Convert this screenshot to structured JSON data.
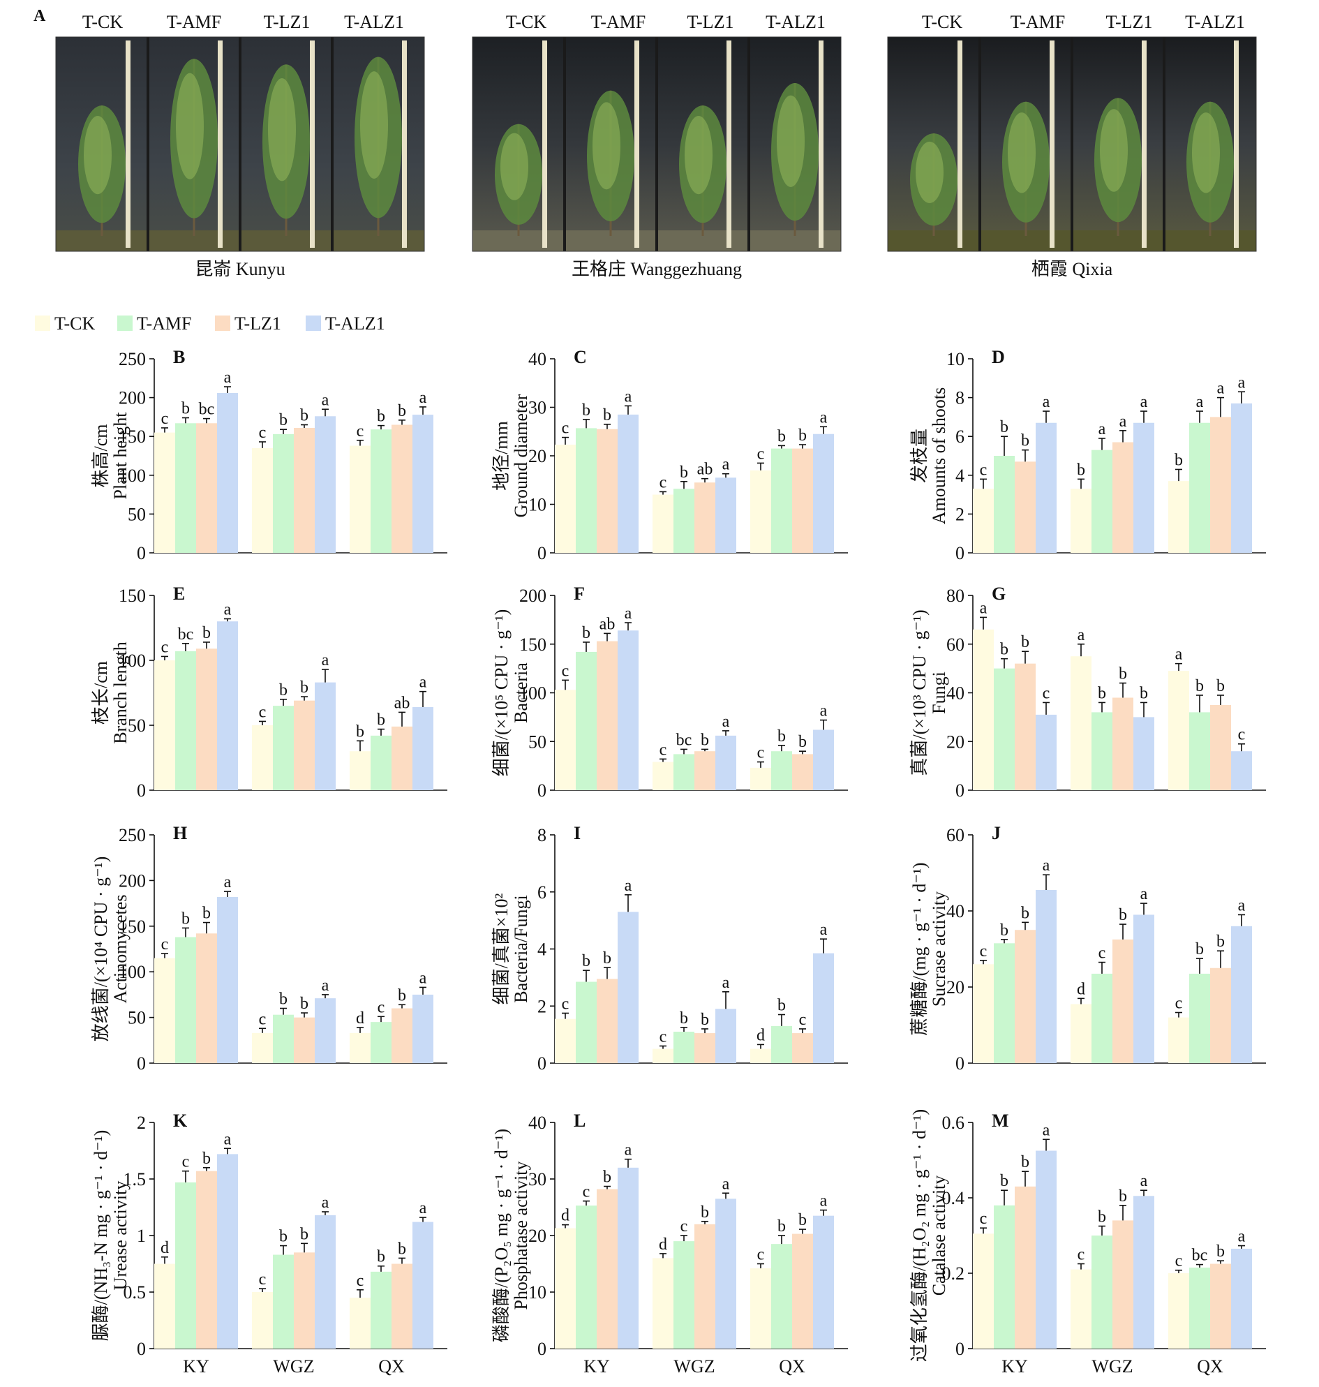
{
  "figure_label_A": "A",
  "photo_panels": [
    {
      "location_label": "昆嵛 Kunyu",
      "treatments": [
        "T-CK",
        "T-AMF",
        "T-LZ1",
        "T-ALZ1"
      ]
    },
    {
      "location_label": "王格庄 Wanggezhuang",
      "treatments": [
        "T-CK",
        "T-AMF",
        "T-LZ1",
        "T-ALZ1"
      ]
    },
    {
      "location_label": "栖霞 Qixia",
      "treatments": [
        "T-CK",
        "T-AMF",
        "T-LZ1",
        "T-ALZ1"
      ]
    }
  ],
  "legend": [
    {
      "name": "T-CK",
      "color": "#FFFBE0"
    },
    {
      "name": "T-AMF",
      "color": "#C9F7CF"
    },
    {
      "name": "T-LZ1",
      "color": "#FCDCC2"
    },
    {
      "name": "T-ALZ1",
      "color": "#C8DAF6"
    }
  ],
  "x_categories": [
    "KY",
    "WGZ",
    "QX"
  ],
  "chart_data": [
    {
      "panel": "B",
      "type": "bar",
      "ylabel_cn": "株高/cm",
      "ylabel_en": "Plant height",
      "ylim": [
        0,
        250
      ],
      "ticks": [
        0,
        50,
        100,
        150,
        200,
        250
      ],
      "categories": [
        "KY",
        "WGZ",
        "QX"
      ],
      "series": [
        {
          "name": "T-CK",
          "values": [
            155,
            135,
            138
          ],
          "errors": [
            6,
            8,
            7
          ],
          "letters": [
            "c",
            "c",
            "c"
          ]
        },
        {
          "name": "T-AMF",
          "values": [
            167,
            153,
            159
          ],
          "errors": [
            7,
            6,
            5
          ],
          "letters": [
            "b",
            "b",
            "b"
          ]
        },
        {
          "name": "T-LZ1",
          "values": [
            167,
            161,
            165
          ],
          "errors": [
            6,
            4,
            6
          ],
          "letters": [
            "bc",
            "b",
            "b"
          ]
        },
        {
          "name": "T-ALZ1",
          "values": [
            206,
            176,
            178
          ],
          "errors": [
            8,
            9,
            10
          ],
          "letters": [
            "a",
            "a",
            "a"
          ]
        }
      ]
    },
    {
      "panel": "C",
      "type": "bar",
      "ylabel_cn": "地径/mm",
      "ylabel_en": "Ground diameter",
      "ylim": [
        0,
        40
      ],
      "ticks": [
        0,
        10,
        20,
        30,
        40
      ],
      "categories": [
        "KY",
        "WGZ",
        "QX"
      ],
      "series": [
        {
          "name": "T-CK",
          "values": [
            22.3,
            12,
            17
          ],
          "errors": [
            1.5,
            0.6,
            1.5
          ],
          "letters": [
            "c",
            "c",
            "c"
          ]
        },
        {
          "name": "T-AMF",
          "values": [
            25.7,
            13.2,
            21.5
          ],
          "errors": [
            1.8,
            1.5,
            0.6
          ],
          "letters": [
            "b",
            "b",
            "b"
          ]
        },
        {
          "name": "T-LZ1",
          "values": [
            25.5,
            14.5,
            21.5
          ],
          "errors": [
            1.0,
            0.8,
            0.8
          ],
          "letters": [
            "b",
            "ab",
            "b"
          ]
        },
        {
          "name": "T-ALZ1",
          "values": [
            28.5,
            15.5,
            24.5
          ],
          "errors": [
            1.8,
            0.8,
            1.5
          ],
          "letters": [
            "a",
            "a",
            "a"
          ]
        }
      ]
    },
    {
      "panel": "D",
      "type": "bar",
      "ylabel_cn": "发枝量",
      "ylabel_en": "Amounts of shoots",
      "ylim": [
        0,
        10
      ],
      "ticks": [
        0,
        2,
        4,
        6,
        8,
        10
      ],
      "categories": [
        "KY",
        "WGZ",
        "QX"
      ],
      "series": [
        {
          "name": "T-CK",
          "values": [
            3.3,
            3.3,
            3.7
          ],
          "errors": [
            0.5,
            0.5,
            0.6
          ],
          "letters": [
            "c",
            "b",
            "b"
          ]
        },
        {
          "name": "T-AMF",
          "values": [
            5.0,
            5.3,
            6.7
          ],
          "errors": [
            1.0,
            0.6,
            0.6
          ],
          "letters": [
            "b",
            "a",
            "a"
          ]
        },
        {
          "name": "T-LZ1",
          "values": [
            4.7,
            5.7,
            7.0
          ],
          "errors": [
            0.6,
            0.6,
            1.0
          ],
          "letters": [
            "b",
            "a",
            "a"
          ]
        },
        {
          "name": "T-ALZ1",
          "values": [
            6.7,
            6.7,
            7.7
          ],
          "errors": [
            0.6,
            0.6,
            0.6
          ],
          "letters": [
            "a",
            "a",
            "a"
          ]
        }
      ]
    },
    {
      "panel": "E",
      "type": "bar",
      "ylabel_cn": "枝长/cm",
      "ylabel_en": "Branch length",
      "ylim": [
        0,
        150
      ],
      "ticks": [
        0,
        50,
        100,
        150
      ],
      "categories": [
        "KY",
        "WGZ",
        "QX"
      ],
      "series": [
        {
          "name": "T-CK",
          "values": [
            100,
            50,
            30
          ],
          "errors": [
            3,
            3,
            8
          ],
          "letters": [
            "c",
            "c",
            "b"
          ]
        },
        {
          "name": "T-AMF",
          "values": [
            107,
            65,
            42
          ],
          "errors": [
            6,
            5,
            5
          ],
          "letters": [
            "bc",
            "b",
            "b"
          ]
        },
        {
          "name": "T-LZ1",
          "values": [
            109,
            69,
            49
          ],
          "errors": [
            5,
            3,
            11
          ],
          "letters": [
            "b",
            "b",
            "ab"
          ]
        },
        {
          "name": "T-ALZ1",
          "values": [
            130,
            83,
            64
          ],
          "errors": [
            2,
            10,
            12
          ],
          "letters": [
            "a",
            "a",
            "a"
          ]
        }
      ]
    },
    {
      "panel": "F",
      "type": "bar",
      "ylabel_cn": "细菌/(×10⁵ CPU · g⁻¹)",
      "ylabel_en": "Bacteria",
      "ylim": [
        0,
        200
      ],
      "ticks": [
        0,
        50,
        100,
        150,
        200
      ],
      "categories": [
        "KY",
        "WGZ",
        "QX"
      ],
      "series": [
        {
          "name": "T-CK",
          "values": [
            103,
            29,
            23
          ],
          "errors": [
            10,
            3,
            6
          ],
          "letters": [
            "c",
            "c",
            "c"
          ]
        },
        {
          "name": "T-AMF",
          "values": [
            142,
            37,
            40
          ],
          "errors": [
            10,
            5,
            6
          ],
          "letters": [
            "b",
            "bc",
            "b"
          ]
        },
        {
          "name": "T-LZ1",
          "values": [
            153,
            40,
            37
          ],
          "errors": [
            8,
            2,
            3
          ],
          "letters": [
            "ab",
            "b",
            "b"
          ]
        },
        {
          "name": "T-ALZ1",
          "values": [
            164,
            56,
            62
          ],
          "errors": [
            8,
            5,
            10
          ],
          "letters": [
            "a",
            "a",
            "a"
          ]
        }
      ]
    },
    {
      "panel": "G",
      "type": "bar",
      "ylabel_cn": "真菌/(×10³ CPU · g⁻¹)",
      "ylabel_en": "Fungi",
      "ylim": [
        0,
        80
      ],
      "ticks": [
        0,
        20,
        40,
        60,
        80
      ],
      "categories": [
        "KY",
        "WGZ",
        "QX"
      ],
      "series": [
        {
          "name": "T-CK",
          "values": [
            66,
            55,
            49
          ],
          "errors": [
            5,
            5,
            3
          ],
          "letters": [
            "a",
            "a",
            "a"
          ]
        },
        {
          "name": "T-AMF",
          "values": [
            50,
            32,
            32
          ],
          "errors": [
            4,
            4,
            7
          ],
          "letters": [
            "b",
            "b",
            "b"
          ]
        },
        {
          "name": "T-LZ1",
          "values": [
            52,
            38,
            35
          ],
          "errors": [
            5,
            6,
            4
          ],
          "letters": [
            "b",
            "b",
            "b"
          ]
        },
        {
          "name": "T-ALZ1",
          "values": [
            31,
            30,
            16
          ],
          "errors": [
            5,
            6,
            3
          ],
          "letters": [
            "c",
            "b",
            "c"
          ]
        }
      ]
    },
    {
      "panel": "H",
      "type": "bar",
      "ylabel_cn": "放线菌/(×10⁴ CPU · g⁻¹)",
      "ylabel_en": "Actinomycetes",
      "ylim": [
        0,
        250
      ],
      "ticks": [
        0,
        50,
        100,
        150,
        200,
        250
      ],
      "categories": [
        "KY",
        "WGZ",
        "QX"
      ],
      "series": [
        {
          "name": "T-CK",
          "values": [
            115,
            33,
            33
          ],
          "errors": [
            5,
            5,
            6
          ],
          "letters": [
            "c",
            "c",
            "d"
          ]
        },
        {
          "name": "T-AMF",
          "values": [
            138,
            53,
            45
          ],
          "errors": [
            10,
            7,
            6
          ],
          "letters": [
            "b",
            "b",
            "c"
          ]
        },
        {
          "name": "T-LZ1",
          "values": [
            142,
            50,
            60
          ],
          "errors": [
            12,
            5,
            4
          ],
          "letters": [
            "b",
            "b",
            "b"
          ]
        },
        {
          "name": "T-ALZ1",
          "values": [
            182,
            71,
            75
          ],
          "errors": [
            6,
            4,
            8
          ],
          "letters": [
            "a",
            "a",
            "a"
          ]
        }
      ]
    },
    {
      "panel": "I",
      "type": "bar",
      "ylabel_cn": "细菌/真菌×10²",
      "ylabel_en": "Bacteria/Fungi",
      "ylim": [
        0,
        8
      ],
      "ticks": [
        0,
        2,
        4,
        6,
        8
      ],
      "categories": [
        "KY",
        "WGZ",
        "QX"
      ],
      "series": [
        {
          "name": "T-CK",
          "values": [
            1.55,
            0.5,
            0.5
          ],
          "errors": [
            0.2,
            0.1,
            0.15
          ],
          "letters": [
            "c",
            "c",
            "d"
          ]
        },
        {
          "name": "T-AMF",
          "values": [
            2.85,
            1.1,
            1.3
          ],
          "errors": [
            0.4,
            0.15,
            0.4
          ],
          "letters": [
            "b",
            "b",
            "b"
          ]
        },
        {
          "name": "T-LZ1",
          "values": [
            2.95,
            1.05,
            1.05
          ],
          "errors": [
            0.4,
            0.15,
            0.15
          ],
          "letters": [
            "b",
            "b",
            "c"
          ]
        },
        {
          "name": "T-ALZ1",
          "values": [
            5.3,
            1.9,
            3.85
          ],
          "errors": [
            0.6,
            0.6,
            0.5
          ],
          "letters": [
            "a",
            "a",
            "a"
          ]
        }
      ]
    },
    {
      "panel": "J",
      "type": "bar",
      "ylabel_cn": "蔗糖酶/(mg · g⁻¹ · d⁻¹)",
      "ylabel_en": "Sucrase activity",
      "ylim": [
        0,
        60
      ],
      "ticks": [
        0,
        20,
        40,
        60
      ],
      "categories": [
        "KY",
        "WGZ",
        "QX"
      ],
      "series": [
        {
          "name": "T-CK",
          "values": [
            26,
            15.5,
            12
          ],
          "errors": [
            1,
            1.5,
            1.3
          ],
          "letters": [
            "c",
            "d",
            "c"
          ]
        },
        {
          "name": "T-AMF",
          "values": [
            31.5,
            23.5,
            23.5
          ],
          "errors": [
            1,
            3,
            4
          ],
          "letters": [
            "b",
            "c",
            "b"
          ]
        },
        {
          "name": "T-LZ1",
          "values": [
            35,
            32.5,
            25
          ],
          "errors": [
            2,
            4,
            4.5
          ],
          "letters": [
            "b",
            "b",
            "b"
          ]
        },
        {
          "name": "T-ALZ1",
          "values": [
            45.5,
            39,
            36
          ],
          "errors": [
            4,
            3,
            3
          ],
          "letters": [
            "a",
            "a",
            "a"
          ]
        }
      ]
    },
    {
      "panel": "K",
      "type": "bar",
      "ylabel_cn": "脲酶/(NH₃-N mg · g⁻¹ · d⁻¹)",
      "ylabel_en": "Urease activity",
      "ylim": [
        0,
        2.0
      ],
      "ticks": [
        0,
        0.5,
        1.0,
        1.5,
        2.0
      ],
      "categories": [
        "KY",
        "WGZ",
        "QX"
      ],
      "series": [
        {
          "name": "T-CK",
          "values": [
            0.75,
            0.5,
            0.45
          ],
          "errors": [
            0.06,
            0.03,
            0.07
          ],
          "letters": [
            "d",
            "c",
            "c"
          ]
        },
        {
          "name": "T-AMF",
          "values": [
            1.47,
            0.83,
            0.68
          ],
          "errors": [
            0.1,
            0.08,
            0.05
          ],
          "letters": [
            "c",
            "b",
            "b"
          ]
        },
        {
          "name": "T-LZ1",
          "values": [
            1.57,
            0.85,
            0.75
          ],
          "errors": [
            0.03,
            0.08,
            0.05
          ],
          "letters": [
            "b",
            "b",
            "b"
          ]
        },
        {
          "name": "T-ALZ1",
          "values": [
            1.72,
            1.18,
            1.12
          ],
          "errors": [
            0.05,
            0.03,
            0.04
          ],
          "letters": [
            "a",
            "a",
            "a"
          ]
        }
      ]
    },
    {
      "panel": "L",
      "type": "bar",
      "ylabel_cn": "磷酸酶/(P₂O₅ mg · g⁻¹ · d⁻¹)",
      "ylabel_en": "Phosphatase activity",
      "ylim": [
        0,
        40
      ],
      "ticks": [
        0,
        10,
        20,
        30,
        40
      ],
      "categories": [
        "KY",
        "WGZ",
        "QX"
      ],
      "series": [
        {
          "name": "T-CK",
          "values": [
            21.3,
            16,
            14.2
          ],
          "errors": [
            0.6,
            0.8,
            0.8
          ],
          "letters": [
            "d",
            "d",
            "c"
          ]
        },
        {
          "name": "T-AMF",
          "values": [
            25.3,
            19,
            18.5
          ],
          "errors": [
            0.8,
            1.0,
            1.5
          ],
          "letters": [
            "c",
            "c",
            "b"
          ]
        },
        {
          "name": "T-LZ1",
          "values": [
            28.2,
            22,
            20.3
          ],
          "errors": [
            0.5,
            0.5,
            0.8
          ],
          "letters": [
            "b",
            "b",
            "b"
          ]
        },
        {
          "name": "T-ALZ1",
          "values": [
            32,
            26.5,
            23.5
          ],
          "errors": [
            1.5,
            1.0,
            1.0
          ],
          "letters": [
            "a",
            "a",
            "a"
          ]
        }
      ]
    },
    {
      "panel": "M",
      "type": "bar",
      "ylabel_cn": "过氧化氢酶/(H₂O₂ mg · g⁻¹ · d⁻¹)",
      "ylabel_en": "Catalase activity",
      "ylim": [
        0,
        0.6
      ],
      "ticks": [
        0,
        0.2,
        0.4,
        0.6
      ],
      "categories": [
        "KY",
        "WGZ",
        "QX"
      ],
      "series": [
        {
          "name": "T-CK",
          "values": [
            0.305,
            0.21,
            0.2
          ],
          "errors": [
            0.015,
            0.015,
            0.008
          ],
          "letters": [
            "c",
            "c",
            "c"
          ]
        },
        {
          "name": "T-AMF",
          "values": [
            0.38,
            0.3,
            0.215
          ],
          "errors": [
            0.04,
            0.025,
            0.008
          ],
          "letters": [
            "b",
            "b",
            "bc"
          ]
        },
        {
          "name": "T-LZ1",
          "values": [
            0.43,
            0.34,
            0.225
          ],
          "errors": [
            0.04,
            0.04,
            0.008
          ],
          "letters": [
            "b",
            "b",
            "b"
          ]
        },
        {
          "name": "T-ALZ1",
          "values": [
            0.525,
            0.405,
            0.265
          ],
          "errors": [
            0.03,
            0.015,
            0.008
          ],
          "letters": [
            "a",
            "a",
            "a"
          ]
        }
      ]
    }
  ]
}
